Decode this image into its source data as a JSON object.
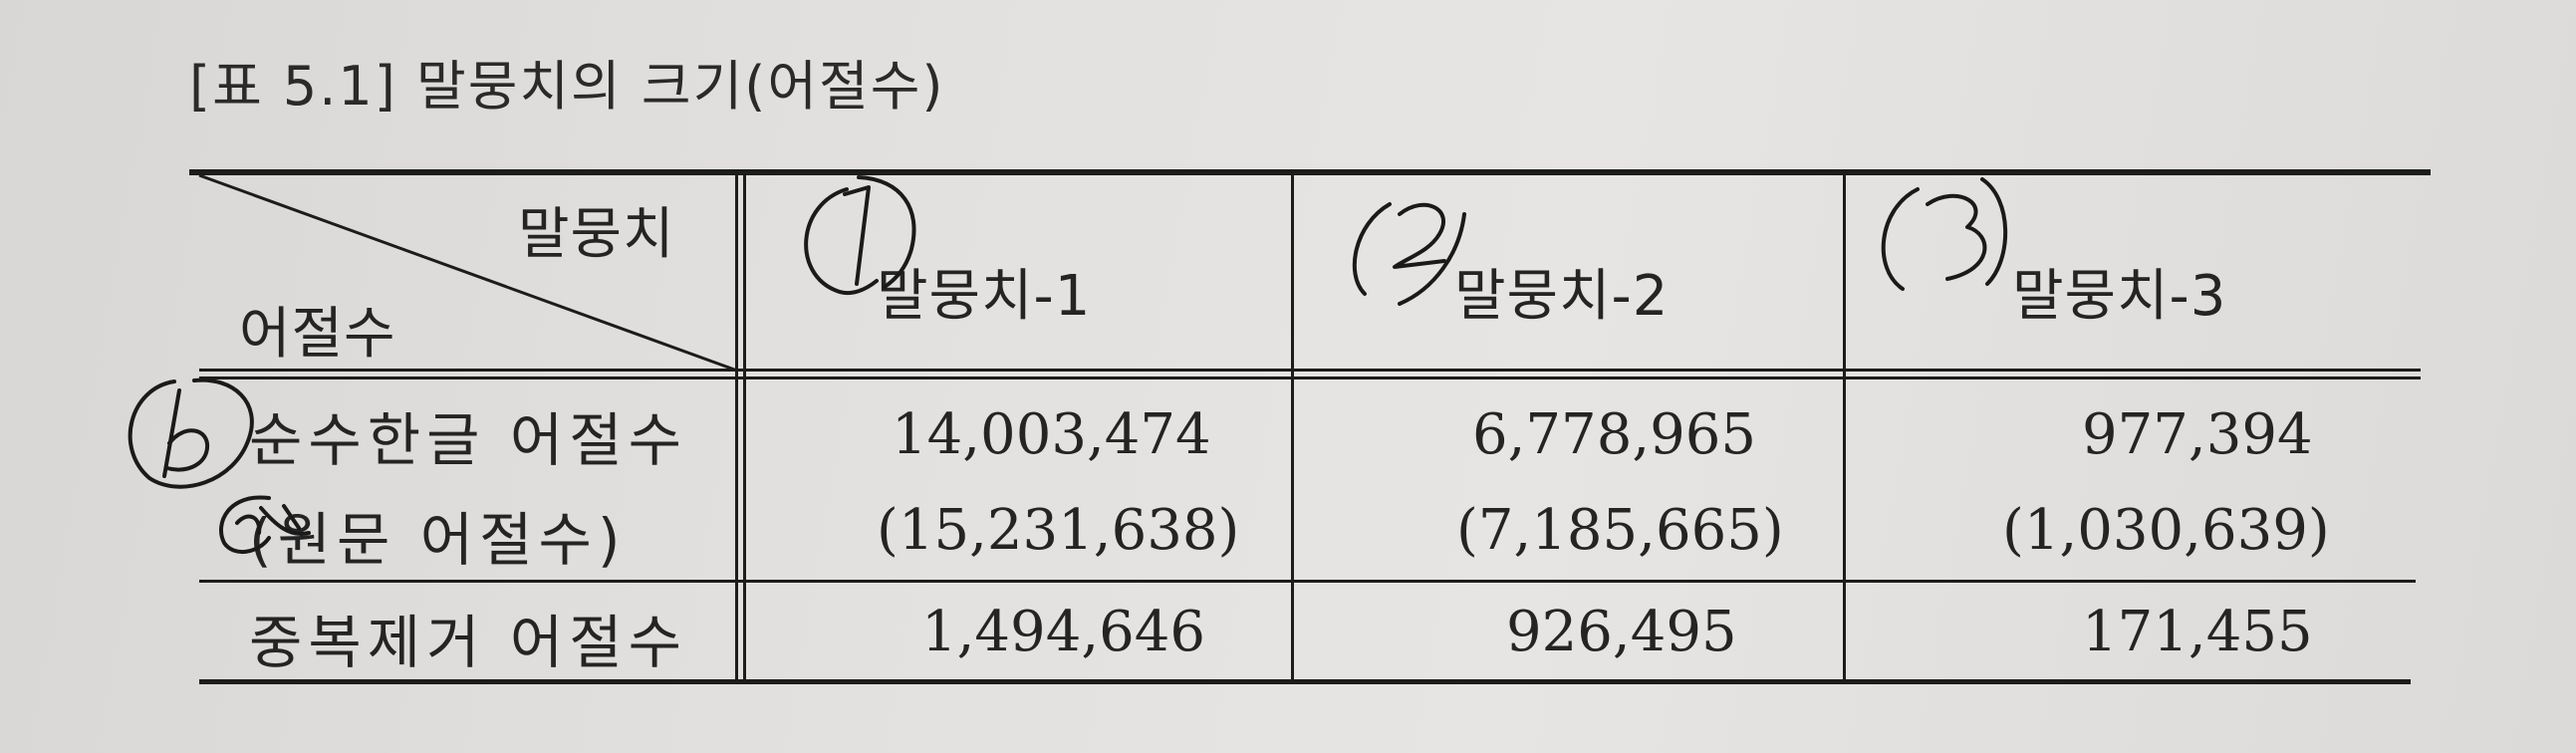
{
  "caption": "[표 5.1] 말뭉치의 크기(어절수)",
  "table": {
    "corner_header_top": "말뭉치",
    "corner_header_bottom": "어절수",
    "columns": [
      "말뭉치-1",
      "말뭉치-2",
      "말뭉치-3"
    ],
    "rows": [
      {
        "label": "순수한글 어절수",
        "values": [
          "14,003,474",
          "6,778,965",
          "977,394"
        ]
      },
      {
        "label": "(원문 어절수)",
        "values": [
          "(15,231,638)",
          "(7,185,665)",
          "(1,030,639)"
        ]
      },
      {
        "label": "중복제거 어절수",
        "values": [
          "1,494,646",
          "926,495",
          "171,455"
        ]
      }
    ]
  },
  "handwriting": {
    "col_marks": [
      "1",
      "2",
      "3"
    ],
    "row_marks": [
      "b",
      "a"
    ]
  }
}
